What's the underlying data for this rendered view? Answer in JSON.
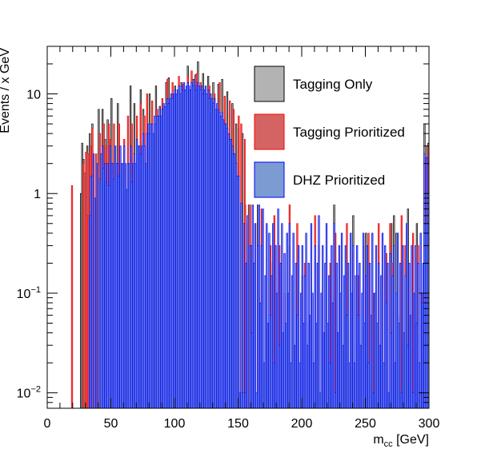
{
  "chart_data": {
    "type": "histogram",
    "xlabel": "m",
    "xlabel_sub": "cc",
    "xlabel_unit": "[GeV]",
    "ylabel": "Events / x GeV",
    "xlim": [
      0,
      300
    ],
    "ylim": [
      0.007,
      30
    ],
    "yscale": "log",
    "x_ticks": [
      "0",
      "50",
      "100",
      "150",
      "200",
      "250",
      "300"
    ],
    "x_tick_values": [
      0,
      50,
      100,
      150,
      200,
      250,
      300
    ],
    "y_ticks": [
      {
        "value": 0.01,
        "base": "10",
        "exp": "−2"
      },
      {
        "value": 0.1,
        "base": "10",
        "exp": "−1"
      },
      {
        "value": 1,
        "base": "1",
        "exp": ""
      },
      {
        "value": 10,
        "base": "10",
        "exp": ""
      }
    ],
    "legend_position": "top-right",
    "bin_width": 1,
    "series": [
      {
        "name": "Tagging Only",
        "fill": "#b3b3b3",
        "stroke": "#000000",
        "values": {
          "26": 1.0,
          "27": 3.2,
          "28": 2.2,
          "29": 1.6,
          "31": 3.0,
          "33": 4.0,
          "35": 5.0,
          "40": 7.0,
          "43": 7.0,
          "45": 3.5,
          "47": 5.5,
          "50": 9.0,
          "55": 8.0,
          "65": 12.0,
          "68": 8.0,
          "73": 11.0,
          "75": 7.0,
          "80": 10.0,
          "85": 12.0,
          "88": 7.5,
          "93": 13.0,
          "95": 14.5,
          "100": 12.0,
          "105": 13.0,
          "110": 19.0,
          "114": 14.0,
          "116": 15.5,
          "118": 21.0,
          "122": 16.0,
          "126": 15.0,
          "130": 13.0,
          "134": 12.5,
          "137": 14.0,
          "141": 10.5,
          "145": 8.0,
          "148": 5.0,
          "150": 4.5,
          "153": 4.0,
          "155": 3.5,
          "158": 2.5,
          "160": 0.3,
          "165": 0.8,
          "175": 0.2,
          "190": 0.3,
          "200": 0.15,
          "225": 1.0,
          "240": 0.6,
          "250": 0.4,
          "270": 0.5,
          "272": 0.6,
          "274": 0.4,
          "283": 0.7,
          "290": 0.5,
          "296": 5.0,
          "298": 3.0,
          "299": 3.2
        }
      },
      {
        "name": "Tagging Prioritized",
        "fill": "#d46464",
        "stroke": "#ff0000",
        "values": {
          "19": 1.2,
          "28": 2.0,
          "30": 2.6,
          "31": 0.6,
          "32": 2.5,
          "34": 3.0,
          "35": 4.5,
          "38": 2.5,
          "41": 4.0,
          "44": 5.0,
          "46": 3.0,
          "48": 5.0,
          "49": 3.5,
          "52": 5.0,
          "56": 5.0,
          "58": 2.0,
          "60": 3.5,
          "63": 6.0,
          "66": 5.0,
          "70": 6.0,
          "73": 8.0,
          "76": 6.0,
          "78": 10.0,
          "82": 8.5,
          "86": 7.0,
          "90": 9.0,
          "94": 14.0,
          "98": 13.0,
          "100": 7.0,
          "103": 15.0,
          "106": 12.5,
          "110": 15.0,
          "113": 17.0,
          "117": 16.0,
          "120": 13.0,
          "124": 11.0,
          "127": 12.0,
          "131": 10.0,
          "135": 13.0,
          "139": 9.5,
          "143": 8.5,
          "146": 7.0,
          "150": 6.0,
          "152": 5.0,
          "155": 3.5,
          "157": 0.5,
          "159": 1.0,
          "163": 0.5,
          "168": 0.7,
          "171": 0.15,
          "175": 0.3,
          "178": 0.6,
          "182": 0.3,
          "186": 0.1,
          "190": 0.8,
          "196": 0.5,
          "202": 0.2,
          "205": 0.05,
          "210": 0.6,
          "213": 0.3,
          "218": 0.02,
          "222": 0.2,
          "226": 0.4,
          "230": 0.08,
          "235": 0.5,
          "240": 0.25,
          "244": 0.15,
          "248": 0.3,
          "252": 0.4,
          "256": 0.1,
          "260": 0.5,
          "263": 0.15,
          "266": 0.25,
          "269": 0.5,
          "271": 0.2,
          "275": 0.06,
          "278": 0.6,
          "281": 0.3,
          "284": 0.2,
          "287": 0.4,
          "291": 0.3,
          "294": 0.1,
          "297": 2.3,
          "299": 3.0
        }
      },
      {
        "name": "DHZ Prioritized",
        "fill": "#7b9bd2",
        "stroke": "#0000ff",
        "values": {
          "33": 0.6,
          "34": 1.5,
          "36": 2.5,
          "37": 0.9,
          "39": 2.0,
          "41": 1.4,
          "42": 2.5,
          "43": 3.0,
          "44": 1.8,
          "45": 2.0,
          "46": 1.3,
          "47": 2.0,
          "48": 1.2,
          "49": 3.0,
          "50": 2.0,
          "51": 2.0,
          "52": 1.4,
          "53": 3.0,
          "54": 2.0,
          "55": 2.0,
          "56": 1.5,
          "57": 3.0,
          "58": 2.0,
          "59": 2.0,
          "60": 3.0,
          "61": 2.0,
          "62": 1.1,
          "63": 2.0,
          "64": 2.0,
          "65": 3.0,
          "66": 1.3,
          "67": 2.0,
          "68": 2.5,
          "69": 2.0,
          "70": 3.5,
          "71": 3.0,
          "72": 3.0,
          "73": 2.5,
          "74": 3.0,
          "75": 4.0,
          "76": 3.0,
          "77": 2.0,
          "78": 4.0,
          "79": 5.0,
          "80": 4.0,
          "81": 5.0,
          "82": 5.0,
          "83": 4.0,
          "84": 6.0,
          "85": 5.0,
          "86": 6.0,
          "87": 6.0,
          "88": 7.0,
          "89": 6.0,
          "90": 7.0,
          "91": 8.0,
          "92": 7.5,
          "93": 8.0,
          "94": 9.0,
          "95": 8.0,
          "96": 9.0,
          "97": 10.0,
          "98": 9.0,
          "99": 10.0,
          "100": 11.0,
          "101": 10.0,
          "102": 11.0,
          "103": 12.0,
          "104": 10.0,
          "105": 12.0,
          "106": 11.0,
          "107": 13.0,
          "108": 11.0,
          "109": 12.0,
          "110": 13.0,
          "111": 12.0,
          "112": 11.0,
          "113": 13.0,
          "114": 12.0,
          "115": 14.0,
          "116": 11.0,
          "117": 12.0,
          "118": 13.0,
          "119": 12.0,
          "120": 11.0,
          "121": 12.0,
          "122": 10.0,
          "123": 11.0,
          "124": 12.0,
          "125": 10.0,
          "126": 11.0,
          "127": 9.0,
          "128": 10.0,
          "129": 9.0,
          "130": 8.0,
          "131": 9.0,
          "132": 7.0,
          "133": 8.0,
          "134": 7.0,
          "135": 6.5,
          "136": 6.0,
          "137": 6.5,
          "138": 5.5,
          "139": 5.0,
          "140": 5.0,
          "141": 4.5,
          "142": 4.0,
          "143": 3.5,
          "144": 3.5,
          "145": 3.0,
          "146": 2.5,
          "147": 2.5,
          "148": 2.0,
          "149": 1.5,
          "150": 1.5,
          "151": 0.01,
          "152": 0.8,
          "153": 0.01,
          "154": 0.5,
          "155": 0.01,
          "156": 0.2,
          "157": 0.6,
          "159": 0.3,
          "160": 0.04,
          "161": 0.8,
          "162": 0.2,
          "163": 0.5,
          "164": 0.01,
          "165": 0.3,
          "166": 1.0,
          "167": 0.08,
          "168": 0.3,
          "169": 0.7,
          "170": 0.02,
          "171": 0.15,
          "172": 0.5,
          "173": 0.05,
          "174": 0.4,
          "175": 0.06,
          "176": 0.15,
          "177": 0.5,
          "178": 0.02,
          "179": 0.3,
          "180": 0.1,
          "181": 0.7,
          "182": 0.03,
          "183": 0.2,
          "184": 0.5,
          "185": 0.04,
          "186": 0.25,
          "187": 0.05,
          "188": 0.4,
          "189": 0.1,
          "190": 0.5,
          "191": 0.02,
          "192": 0.15,
          "193": 0.4,
          "194": 0.03,
          "195": 0.2,
          "196": 0.06,
          "197": 0.3,
          "198": 0.02,
          "199": 0.1,
          "200": 0.3,
          "201": 0.05,
          "202": 0.15,
          "203": 0.4,
          "204": 0.03,
          "205": 0.2,
          "206": 0.06,
          "207": 0.5,
          "208": 0.1,
          "209": 0.02,
          "210": 0.3,
          "211": 0.05,
          "212": 0.2,
          "213": 0.6,
          "214": 0.01,
          "215": 0.1,
          "216": 0.3,
          "217": 0.04,
          "218": 0.2,
          "219": 0.5,
          "220": 0.05,
          "221": 0.15,
          "222": 0.02,
          "223": 0.3,
          "224": 0.08,
          "225": 0.5,
          "226": 0.01,
          "227": 0.2,
          "228": 0.04,
          "229": 0.3,
          "230": 0.1,
          "231": 0.4,
          "232": 0.03,
          "233": 0.15,
          "234": 0.3,
          "235": 0.06,
          "236": 0.2,
          "237": 0.02,
          "238": 0.4,
          "239": 0.1,
          "240": 0.3,
          "241": 0.02,
          "242": 0.15,
          "243": 0.3,
          "244": 0.06,
          "245": 0.2,
          "246": 0.03,
          "247": 0.1,
          "248": 0.4,
          "249": 0.05,
          "250": 0.15,
          "251": 0.3,
          "252": 0.02,
          "253": 0.2,
          "254": 0.06,
          "255": 0.4,
          "256": 0.01,
          "257": 0.1,
          "258": 0.3,
          "259": 0.05,
          "260": 0.2,
          "261": 0.03,
          "262": 0.15,
          "263": 0.4,
          "264": 0.02,
          "265": 0.3,
          "266": 0.08,
          "267": 0.2,
          "268": 0.01,
          "269": 0.25,
          "270": 0.04,
          "271": 0.15,
          "272": 0.3,
          "273": 0.02,
          "274": 0.1,
          "275": 0.4,
          "276": 0.05,
          "277": 0.2,
          "278": 0.01,
          "279": 0.3,
          "280": 0.04,
          "281": 0.15,
          "282": 0.5,
          "283": 0.03,
          "284": 0.2,
          "285": 0.06,
          "286": 0.3,
          "287": 0.01,
          "288": 0.1,
          "289": 0.3,
          "290": 0.05,
          "291": 0.2,
          "292": 0.02,
          "293": 0.4,
          "294": 0.08,
          "295": 0.2,
          "296": 2.5,
          "297": 0.5,
          "298": 2.3,
          "299": 1.0
        }
      }
    ]
  }
}
